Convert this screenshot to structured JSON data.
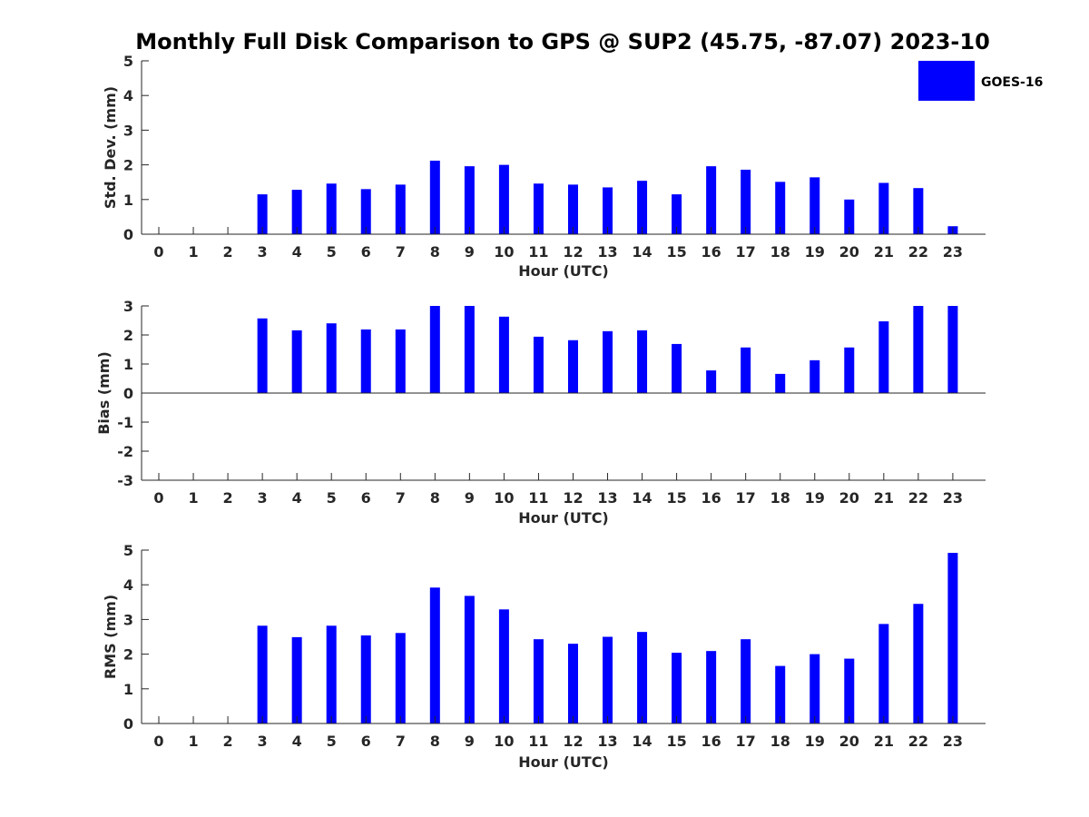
{
  "figure": {
    "title": "Monthly Full Disk Comparison to GPS @ SUP2 (45.75, -87.07) 2023-10"
  },
  "legend": {
    "label": "GOES-16",
    "color": "#0000ff"
  },
  "chart_data": [
    {
      "type": "bar",
      "id": "stddev",
      "xlabel": "Hour (UTC)",
      "ylabel": "Std. Dev. (mm)",
      "ylim": [
        0,
        5
      ],
      "yticks": [
        0,
        1,
        2,
        3,
        4,
        5
      ],
      "categories": [
        "0",
        "1",
        "2",
        "3",
        "4",
        "5",
        "6",
        "7",
        "8",
        "9",
        "10",
        "11",
        "12",
        "13",
        "14",
        "15",
        "16",
        "17",
        "18",
        "19",
        "20",
        "21",
        "22",
        "23"
      ],
      "series": [
        {
          "name": "GOES-16",
          "values": [
            null,
            null,
            null,
            1.15,
            1.28,
            1.46,
            1.3,
            1.43,
            2.12,
            1.96,
            2.0,
            1.46,
            1.43,
            1.35,
            1.54,
            1.15,
            1.96,
            1.86,
            1.51,
            1.64,
            1.0,
            1.48,
            1.33,
            0.23
          ]
        }
      ],
      "grid": false
    },
    {
      "type": "bar",
      "id": "bias",
      "xlabel": "Hour (UTC)",
      "ylabel": "Bias (mm)",
      "ylim": [
        -3,
        3
      ],
      "yticks": [
        -3,
        -2,
        -1,
        0,
        1,
        2,
        3
      ],
      "categories": [
        "0",
        "1",
        "2",
        "3",
        "4",
        "5",
        "6",
        "7",
        "8",
        "9",
        "10",
        "11",
        "12",
        "13",
        "14",
        "15",
        "16",
        "17",
        "18",
        "19",
        "20",
        "21",
        "22",
        "23"
      ],
      "series": [
        {
          "name": "GOES-16",
          "values": [
            null,
            null,
            null,
            2.57,
            2.16,
            2.4,
            2.19,
            2.19,
            3.0,
            3.0,
            2.63,
            1.94,
            1.82,
            2.13,
            2.16,
            1.69,
            0.78,
            1.57,
            0.66,
            1.13,
            1.57,
            2.47,
            3.0,
            3.0
          ]
        }
      ],
      "grid": false
    },
    {
      "type": "bar",
      "id": "rms",
      "xlabel": "Hour (UTC)",
      "ylabel": "RMS (mm)",
      "ylim": [
        0,
        5
      ],
      "yticks": [
        0,
        1,
        2,
        3,
        4,
        5
      ],
      "categories": [
        "0",
        "1",
        "2",
        "3",
        "4",
        "5",
        "6",
        "7",
        "8",
        "9",
        "10",
        "11",
        "12",
        "13",
        "14",
        "15",
        "16",
        "17",
        "18",
        "19",
        "20",
        "21",
        "22",
        "23"
      ],
      "series": [
        {
          "name": "GOES-16",
          "values": [
            null,
            null,
            null,
            2.82,
            2.49,
            2.82,
            2.54,
            2.61,
            3.92,
            3.68,
            3.29,
            2.43,
            2.3,
            2.5,
            2.64,
            2.04,
            2.09,
            2.43,
            1.66,
            2.0,
            1.87,
            2.87,
            3.45,
            4.92
          ]
        }
      ],
      "grid": false
    }
  ]
}
